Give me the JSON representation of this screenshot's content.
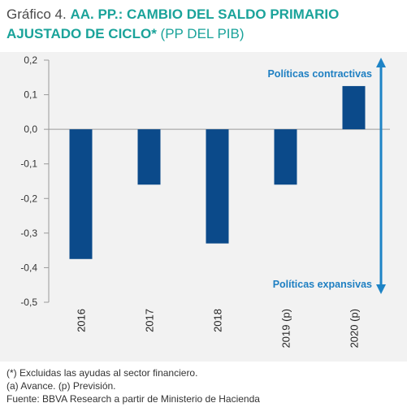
{
  "header": {
    "prefix": "Gráfico 4.",
    "title_bold": "AA. PP.: CAMBIO DEL SALDO PRIMARIO AJUSTADO DE CICLO*",
    "title_unit": "(PP DEL PIB)"
  },
  "annotations": {
    "top": "Políticas contractivas",
    "bottom": "Políticas expansivas"
  },
  "footnotes": [
    "(*) Excluidas las ayudas al sector financiero.",
    "(a) Avance. (p) Previsión.",
    "Fuente: BBVA Research a partir de Ministerio de Hacienda"
  ],
  "colors": {
    "bar": "#0b4a8a",
    "arrow": "#1e84c6",
    "annotation": "#1e7fc2",
    "background": "#f2f2f2"
  },
  "chart_data": {
    "type": "bar",
    "categories": [
      "2016",
      "2017",
      "2018",
      "2019 (p)",
      "2020 (p)"
    ],
    "values": [
      -0.375,
      -0.16,
      -0.33,
      -0.16,
      0.125
    ],
    "ylim": [
      -0.5,
      0.2
    ],
    "yticks": [
      0.2,
      0.1,
      0.0,
      -0.1,
      -0.2,
      -0.3,
      -0.4,
      -0.5
    ],
    "ytick_labels": [
      "0,2",
      "0,1",
      "0,0",
      "-0,1",
      "-0,2",
      "-0,3",
      "-0,4",
      "-0,5"
    ],
    "grid": false
  }
}
